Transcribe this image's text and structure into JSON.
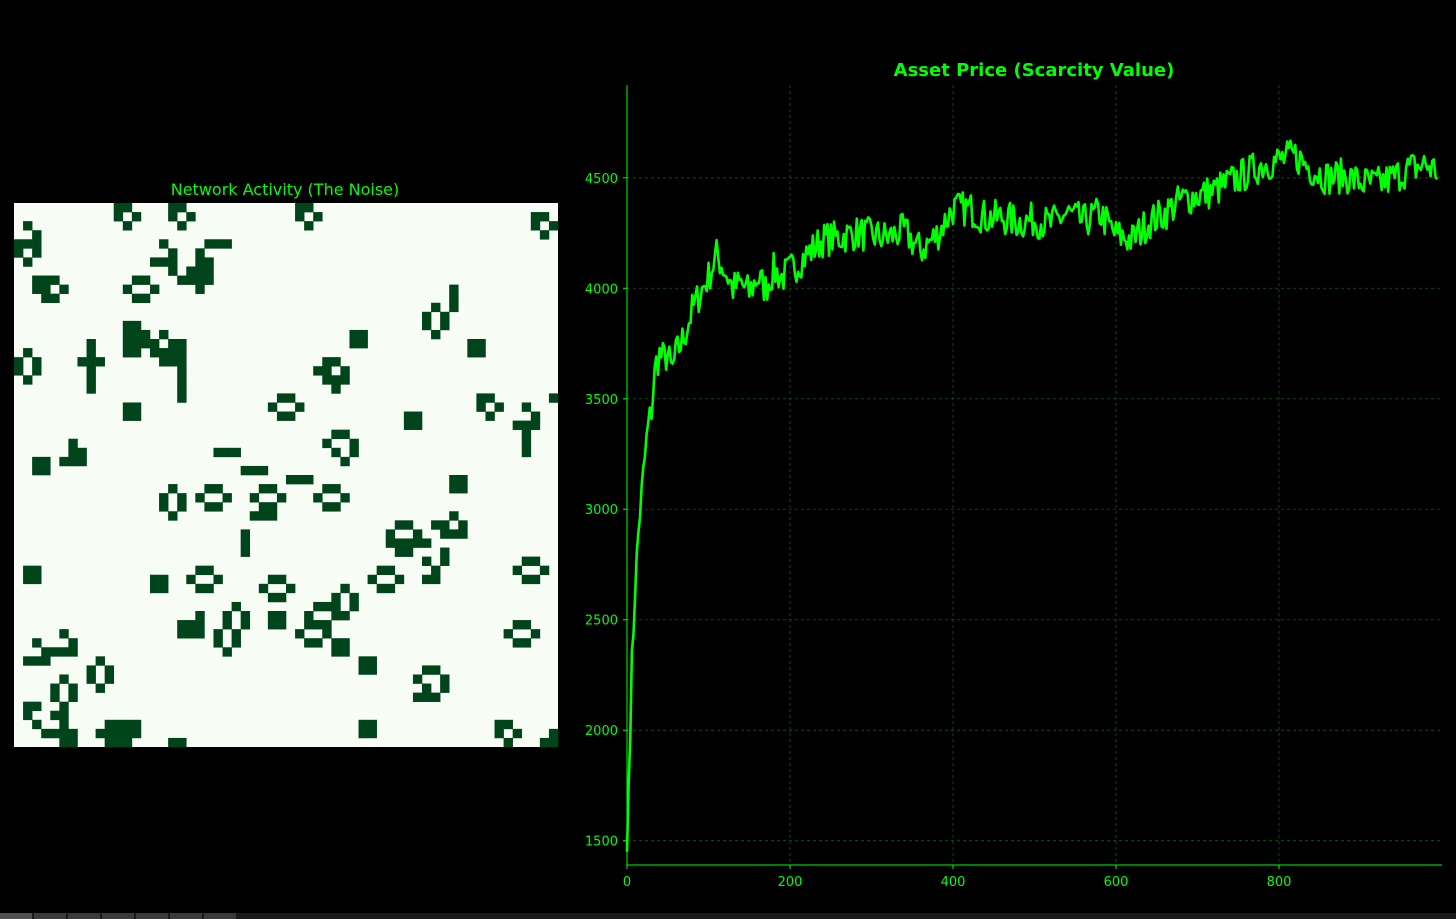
{
  "colors": {
    "background": "#000000",
    "accent": "#00ff00",
    "text": "#00ff00",
    "grid": "#006400",
    "cell_alive": "#00441b",
    "cell_dead": "#f7fcf5"
  },
  "chart_data": [
    {
      "type": "heatmap",
      "title": "Network Activity (The Noise)",
      "grid_size": [
        60,
        60
      ],
      "axes_visible": false
    },
    {
      "type": "line",
      "title": "Asset Price (Scarcity Value)",
      "xlabel": "",
      "ylabel": "",
      "xlim": [
        0,
        1000
      ],
      "ylim": [
        1390,
        4920
      ],
      "xticks": [
        0,
        200,
        400,
        600,
        800
      ],
      "yticks": [
        1500,
        2000,
        2500,
        3000,
        3500,
        4000,
        4500
      ],
      "grid": true,
      "series": [
        {
          "x": [
            0,
            5,
            10,
            15,
            20,
            25,
            30,
            35,
            40,
            45,
            50,
            55,
            60,
            70,
            80,
            90,
            100,
            110,
            120,
            130,
            140,
            150,
            160,
            170,
            180,
            190,
            200,
            220,
            240,
            260,
            280,
            300,
            320,
            340,
            360,
            380,
            400,
            420,
            440,
            460,
            480,
            500,
            520,
            540,
            560,
            580,
            600,
            620,
            640,
            660,
            680,
            700,
            720,
            740,
            760,
            780,
            800,
            820,
            840,
            860,
            880,
            900,
            920,
            940,
            960,
            980,
            995
          ],
          "y": [
            1450,
            2200,
            2650,
            2950,
            3150,
            3350,
            3450,
            3650,
            3700,
            3680,
            3700,
            3620,
            3700,
            3780,
            3900,
            3980,
            4050,
            4150,
            4080,
            4000,
            4020,
            3980,
            4050,
            4000,
            4080,
            4050,
            4080,
            4150,
            4220,
            4230,
            4250,
            4240,
            4230,
            4260,
            4170,
            4240,
            4360,
            4360,
            4320,
            4320,
            4300,
            4310,
            4290,
            4340,
            4300,
            4340,
            4240,
            4220,
            4300,
            4340,
            4400,
            4420,
            4440,
            4480,
            4520,
            4560,
            4580,
            4600,
            4540,
            4500,
            4510,
            4480,
            4470,
            4500,
            4540,
            4560,
            4530
          ]
        }
      ]
    }
  ]
}
